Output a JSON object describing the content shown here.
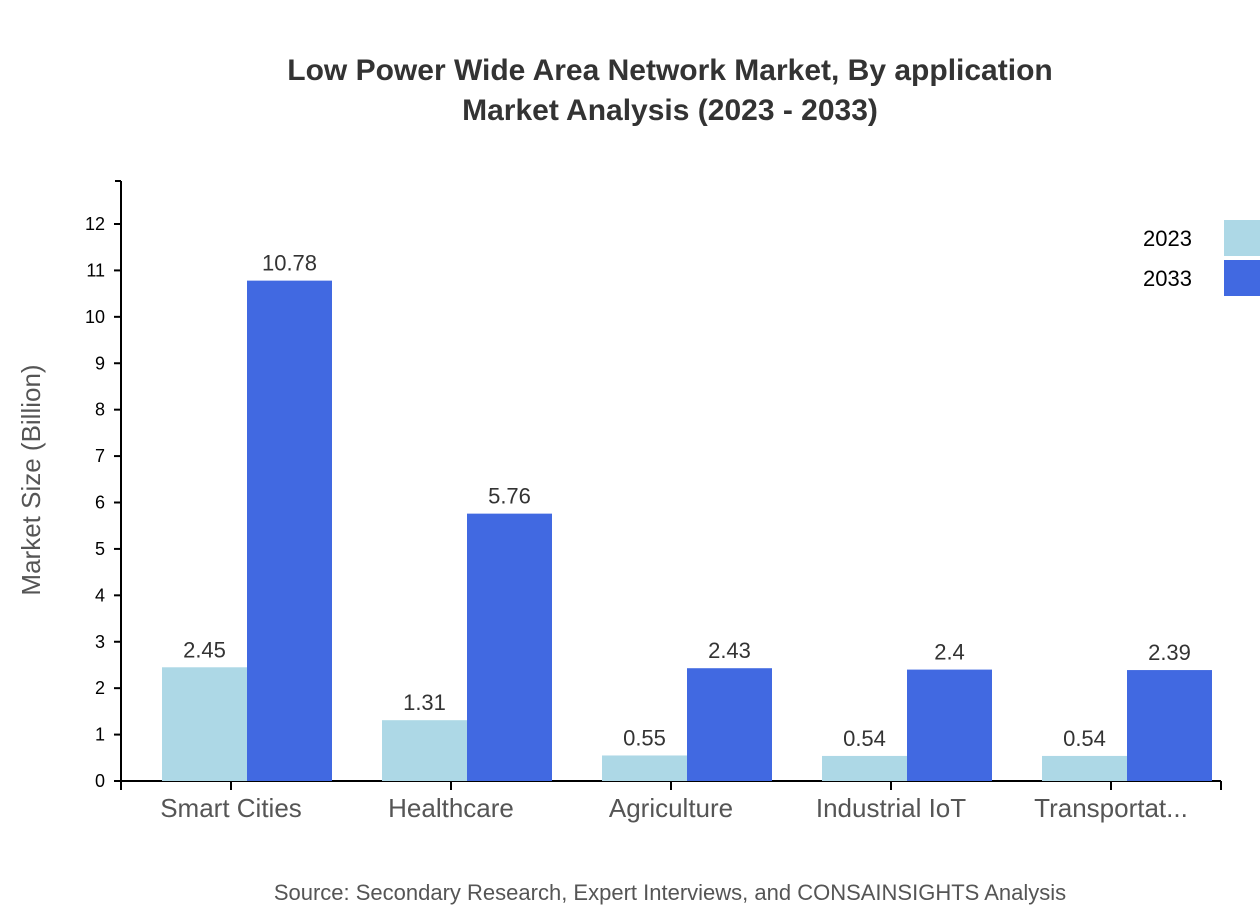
{
  "chart_data": {
    "type": "bar",
    "title": "Low Power Wide Area Network Market, By application",
    "subtitle": "Market Analysis (2023 - 2033)",
    "xlabel": "",
    "ylabel": "Market Size (Billion)",
    "ylim": [
      0,
      12.9
    ],
    "yticks": [
      0,
      1,
      2,
      3,
      4,
      5,
      6,
      7,
      8,
      9,
      10,
      11,
      12
    ],
    "categories": [
      "Smart Cities",
      "Healthcare",
      "Agriculture",
      "Industrial IoT",
      "Transportat..."
    ],
    "series": [
      {
        "name": "2023",
        "color": "#add8e6",
        "values": [
          2.45,
          1.31,
          0.55,
          0.54,
          0.54
        ]
      },
      {
        "name": "2033",
        "color": "#4169e1",
        "values": [
          10.78,
          5.76,
          2.43,
          2.4,
          2.39
        ]
      }
    ],
    "legend": "top-right",
    "grid": false,
    "source": "Source: Secondary Research, Expert Interviews, and CONSAINSIGHTS Analysis"
  }
}
